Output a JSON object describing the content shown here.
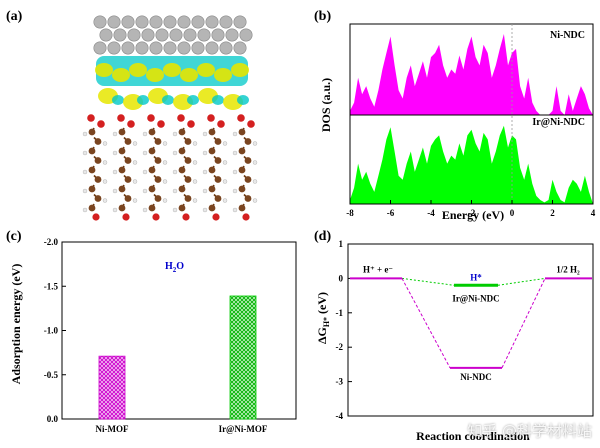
{
  "panel_a": {
    "label": "(a)"
  },
  "panel_b": {
    "label": "(b)",
    "ylabel": "DOS (a.u.)",
    "xlabel": "Energy (eV)",
    "top_legend": "Ni-NDC",
    "bottom_legend": "Ir@Ni-NDC",
    "top_color": "#ff00ff",
    "bottom_color": "#00ff00"
  },
  "panel_c": {
    "label": "(c)",
    "annotation": "H2O",
    "ylabel": "Adsorption energy (eV)",
    "bar_colors": [
      "#cc00cc",
      "#00cc00"
    ]
  },
  "panel_d": {
    "label": "(d)",
    "ylabel": "ΔG_H* (eV)",
    "xlabel": "Reaction coordination",
    "state_left": "H⁺ + e⁻",
    "state_mid": "H*",
    "state_right": "1/2 H₂",
    "label_ir": "Ir@Ni-NDC",
    "label_ni": "Ni-NDC",
    "colors": {
      "ir": "#00cc00",
      "ni": "#cc00cc",
      "h": "#0000cc"
    }
  },
  "watermark": "知乎 @科学材料站",
  "chart_data": [
    {
      "type": "area",
      "panel": "b",
      "xlabel": "Energy (eV)",
      "ylabel": "DOS (a.u.)",
      "xlim": [
        -8,
        4
      ],
      "xticks": [
        -8,
        -6,
        -4,
        -2,
        0,
        2,
        4
      ],
      "fermi_line": 0,
      "series": [
        {
          "name": "Ni-NDC",
          "x": [
            -8,
            -7.8,
            -7.6,
            -7.4,
            -7.2,
            -7.0,
            -6.8,
            -6.6,
            -6.4,
            -6.2,
            -6.0,
            -5.8,
            -5.6,
            -5.4,
            -5.2,
            -5.0,
            -4.8,
            -4.6,
            -4.4,
            -4.2,
            -4.0,
            -3.8,
            -3.6,
            -3.4,
            -3.2,
            -3.0,
            -2.8,
            -2.6,
            -2.4,
            -2.2,
            -2.0,
            -1.8,
            -1.6,
            -1.4,
            -1.2,
            -1.0,
            -0.8,
            -0.6,
            -0.4,
            -0.2,
            0.0,
            0.2,
            0.4,
            0.6,
            0.8,
            1.0,
            1.2,
            1.4,
            1.6,
            1.8,
            2.0,
            2.2,
            2.4,
            2.6,
            2.8,
            3.0,
            3.2,
            3.4,
            3.6,
            3.8,
            4.0
          ],
          "y": [
            0.05,
            0.15,
            0.45,
            0.25,
            0.35,
            0.2,
            0.1,
            0.3,
            0.55,
            0.75,
            0.95,
            0.6,
            0.3,
            0.2,
            0.45,
            0.6,
            0.35,
            0.5,
            0.65,
            0.45,
            0.7,
            0.75,
            0.85,
            0.6,
            0.45,
            0.55,
            0.5,
            0.72,
            0.55,
            0.8,
            0.95,
            0.7,
            0.6,
            0.85,
            0.75,
            0.45,
            0.6,
            0.8,
            0.98,
            0.6,
            0.75,
            0.8,
            0.35,
            0.2,
            0.45,
            0.15,
            0.05,
            0.0,
            0.0,
            0.0,
            0.05,
            0.35,
            0.05,
            0.0,
            0.25,
            0.05,
            0.2,
            0.35,
            0.25,
            0.08,
            0.0
          ]
        },
        {
          "name": "Ir@Ni-NDC",
          "x": [
            -8,
            -7.8,
            -7.6,
            -7.4,
            -7.2,
            -7.0,
            -6.8,
            -6.6,
            -6.4,
            -6.2,
            -6.0,
            -5.8,
            -5.6,
            -5.4,
            -5.2,
            -5.0,
            -4.8,
            -4.6,
            -4.4,
            -4.2,
            -4.0,
            -3.8,
            -3.6,
            -3.4,
            -3.2,
            -3.0,
            -2.8,
            -2.6,
            -2.4,
            -2.2,
            -2.0,
            -1.8,
            -1.6,
            -1.4,
            -1.2,
            -1.0,
            -0.8,
            -0.6,
            -0.4,
            -0.2,
            0.0,
            0.2,
            0.4,
            0.6,
            0.8,
            1.0,
            1.2,
            1.4,
            1.6,
            1.8,
            2.0,
            2.2,
            2.4,
            2.6,
            2.8,
            3.0,
            3.2,
            3.4,
            3.6,
            3.8,
            4.0
          ],
          "y": [
            0.05,
            0.2,
            0.5,
            0.3,
            0.4,
            0.25,
            0.15,
            0.35,
            0.55,
            0.8,
            0.95,
            0.65,
            0.35,
            0.3,
            0.5,
            0.65,
            0.4,
            0.55,
            0.7,
            0.5,
            0.72,
            0.8,
            0.85,
            0.65,
            0.5,
            0.6,
            0.55,
            0.75,
            0.6,
            0.85,
            0.92,
            0.75,
            0.65,
            0.88,
            0.8,
            0.5,
            0.65,
            0.85,
            0.97,
            0.7,
            0.85,
            0.8,
            0.45,
            0.3,
            0.5,
            0.25,
            0.1,
            0.05,
            0.02,
            0.05,
            0.3,
            0.15,
            0.05,
            0.02,
            0.2,
            0.3,
            0.25,
            0.15,
            0.35,
            0.15,
            0.0
          ]
        }
      ]
    },
    {
      "type": "bar",
      "panel": "c",
      "categories": [
        "Ni-MOF",
        "Ir@Ni-MOF"
      ],
      "values": [
        -0.71,
        -1.39
      ],
      "ylabel": "Adsorption energy (eV)",
      "ylim": [
        0,
        -2.0
      ],
      "yticks": [
        0,
        -0.5,
        -1.0,
        -1.5,
        -2.0
      ],
      "ytick_labels": [
        "0.0",
        "-0.5",
        "-1.0",
        "-1.5",
        "-2.0"
      ]
    },
    {
      "type": "line",
      "panel": "d",
      "xlabel": "Reaction coordination",
      "ylabel": "ΔG_H* (eV)",
      "ylim": [
        -4,
        1
      ],
      "yticks": [
        1,
        0,
        -1,
        -2,
        -3,
        -4
      ],
      "states": [
        "H⁺ + e⁻",
        "H*",
        "1/2 H₂"
      ],
      "series": [
        {
          "name": "Ir@Ni-NDC",
          "values": [
            0,
            -0.2,
            0
          ]
        },
        {
          "name": "Ni-NDC",
          "values": [
            0,
            -2.6,
            0
          ]
        }
      ]
    }
  ]
}
